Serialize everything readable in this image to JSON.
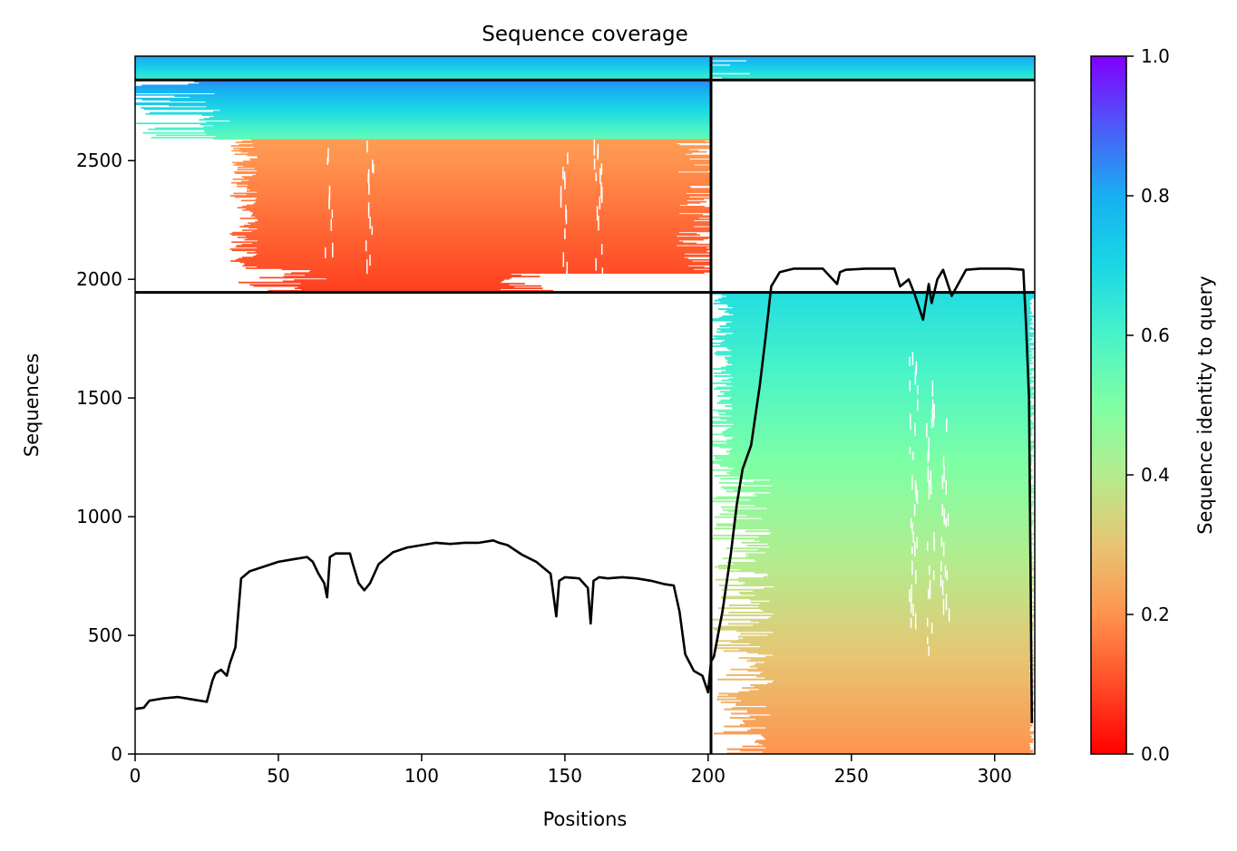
{
  "chart_data": {
    "type": "heatmap",
    "title": "Sequence coverage",
    "xlabel": "Positions",
    "ylabel": "Sequences",
    "xlim": [
      0,
      314
    ],
    "ylim": [
      0,
      2940
    ],
    "x_ticks": [
      0,
      50,
      100,
      150,
      200,
      250,
      300
    ],
    "y_ticks": [
      0,
      500,
      1000,
      1500,
      2000,
      2500
    ],
    "grid": false,
    "colorbar": {
      "label": "Sequence identity to query",
      "colormap": "rainbow_r",
      "range": [
        0,
        1
      ],
      "ticks": [
        0.0,
        0.2,
        0.4,
        0.6,
        0.8,
        1.0
      ],
      "tick_labels": [
        "0.0",
        "0.2",
        "0.4",
        "0.6",
        "0.8",
        "1.0"
      ]
    },
    "chain_boundary_x": 201,
    "block_boundaries_y": [
      1945,
      2840
    ],
    "blocks": [
      {
        "name": "paired",
        "y": [
          2840,
          2940
        ],
        "x_ranges": [
          [
            0,
            201
          ],
          [
            201,
            314
          ]
        ],
        "identity": [
          0.62,
          0.82
        ]
      },
      {
        "name": "chain A unpaired (high identity)",
        "y": [
          2590,
          2840
        ],
        "x": [
          0,
          201
        ],
        "identity": [
          0.55,
          0.85
        ]
      },
      {
        "name": "chain A unpaired (low identity)",
        "y": [
          1945,
          2590
        ],
        "x": [
          29,
          201
        ],
        "identity": [
          0.08,
          0.22
        ]
      },
      {
        "name": "chain B unpaired",
        "y": [
          0,
          1945
        ],
        "x": [
          201,
          314
        ],
        "identity": [
          0.2,
          0.68
        ]
      }
    ],
    "coverage_line": {
      "color": "#000000",
      "x": [
        0,
        3,
        5,
        10,
        15,
        20,
        25,
        27,
        28,
        30,
        32,
        33,
        35,
        37,
        38,
        40,
        45,
        50,
        55,
        60,
        62,
        64,
        66,
        67,
        68,
        70,
        75,
        76,
        78,
        80,
        82,
        85,
        90,
        95,
        100,
        105,
        110,
        115,
        120,
        125,
        127,
        130,
        135,
        140,
        145,
        147,
        148,
        150,
        155,
        158,
        159,
        160,
        162,
        165,
        170,
        175,
        180,
        185,
        188,
        190,
        192,
        195,
        198,
        200,
        201,
        202,
        205,
        208,
        210,
        212,
        215,
        218,
        220,
        222,
        225,
        230,
        240,
        245,
        246,
        248,
        255,
        265,
        267,
        270,
        272,
        275,
        277,
        278,
        280,
        282,
        285,
        290,
        295,
        300,
        305,
        310,
        311,
        312,
        313
      ],
      "y": [
        190,
        195,
        225,
        235,
        240,
        230,
        220,
        310,
        340,
        355,
        330,
        380,
        450,
        740,
        750,
        770,
        790,
        810,
        820,
        830,
        810,
        760,
        720,
        660,
        830,
        845,
        845,
        800,
        720,
        690,
        720,
        800,
        850,
        870,
        880,
        890,
        885,
        890,
        890,
        900,
        890,
        880,
        840,
        810,
        760,
        580,
        730,
        745,
        740,
        700,
        550,
        730,
        745,
        740,
        745,
        740,
        730,
        715,
        710,
        600,
        420,
        350,
        330,
        260,
        390,
        410,
        600,
        850,
        1050,
        1200,
        1300,
        1550,
        1750,
        1970,
        2030,
        2045,
        2045,
        1980,
        2030,
        2040,
        2045,
        2045,
        1970,
        2000,
        1940,
        1830,
        1980,
        1900,
        2000,
        2040,
        1930,
        2040,
        2045,
        2045,
        2045,
        2040,
        1800,
        1500,
        130
      ]
    }
  }
}
